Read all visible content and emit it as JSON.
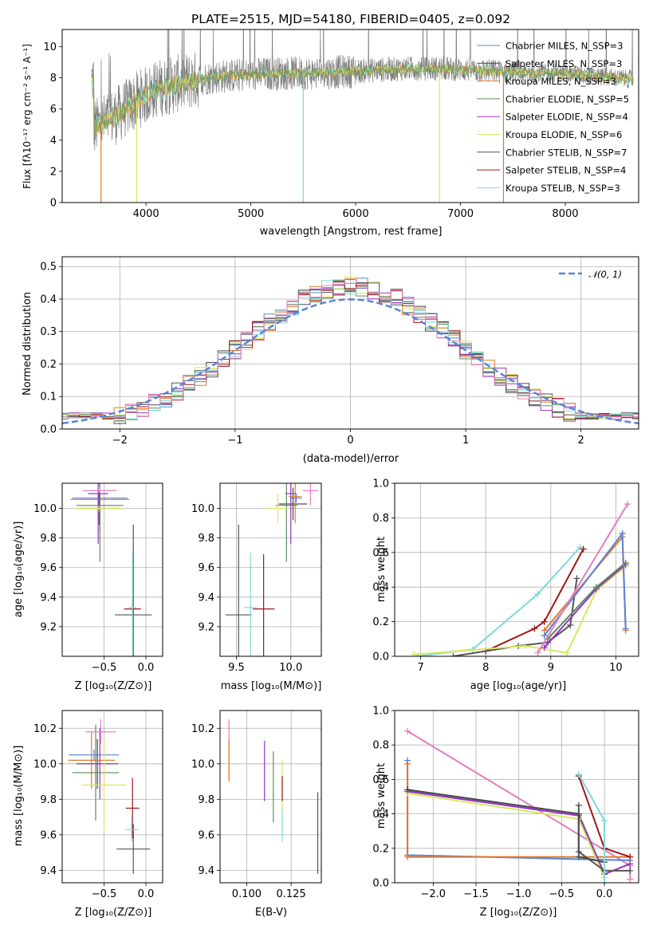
{
  "colors": {
    "chabrier_miles": "#5b84d6",
    "salpeter_miles": "#4a4a4a",
    "kroupa_miles": "#e07a2e",
    "chabrier_elodie": "#5c8a5c",
    "salpeter_elodie": "#9932cc",
    "kroupa_elodie": "#d7e85e",
    "chabrier_stelib": "#555555",
    "salpeter_stelib": "#a01818",
    "kroupa_stelib": "#7fd8d8",
    "pink": "#e27fc0",
    "gauss": "#5b84d6",
    "spectrum": "#7f7f7f"
  },
  "chart_data": [
    {
      "id": "spectrum",
      "type": "line",
      "title": "PLATE=2515, MJD=54180, FIBERID=0405, z=0.092",
      "xlabel": "wavelength [Angstrom, rest frame]",
      "ylabel": "Flux [fλ10⁻¹⁷ erg cm⁻² s⁻¹ A⁻¹]",
      "xlim": [
        3200,
        8700
      ],
      "ylim": [
        0,
        11.1
      ],
      "xticks": [
        "4000",
        "5000",
        "6000",
        "7000",
        "8000"
      ],
      "yticks": [
        "0",
        "2",
        "4",
        "6",
        "8",
        "10"
      ],
      "grid": false,
      "legend_position": "top-right",
      "legend": [
        "Chabrier MILES, N_SSP=3",
        "Salpeter MILES, N_SSP=3",
        "Kroupa MILES, N_SSP=3",
        "Chabrier ELODIE, N_SSP=5",
        "Salpeter ELODIE, N_SSP=4",
        "Kroupa ELODIE, N_SSP=6",
        "Chabrier STELIB, N_SSP=7",
        "Salpeter STELIB, N_SSP=4",
        "Kroupa STELIB, N_SSP=3"
      ],
      "continuum": [
        [
          3500,
          4.8
        ],
        [
          3700,
          5.5
        ],
        [
          3900,
          6.5
        ],
        [
          4100,
          7.3
        ],
        [
          4300,
          7.6
        ],
        [
          4500,
          7.9
        ],
        [
          4700,
          8.1
        ],
        [
          5000,
          8.2
        ],
        [
          5300,
          8.3
        ],
        [
          5600,
          8.3
        ],
        [
          5900,
          8.4
        ],
        [
          6200,
          8.5
        ],
        [
          6500,
          8.6
        ],
        [
          6800,
          8.6
        ],
        [
          7100,
          8.5
        ],
        [
          7400,
          8.4
        ],
        [
          7700,
          8.3
        ],
        [
          8000,
          8.3
        ],
        [
          8300,
          8.1
        ],
        [
          8650,
          7.9
        ]
      ]
    },
    {
      "id": "residuals",
      "type": "histogram",
      "xlabel": "(data-model)/error",
      "ylabel": "Normed distribution",
      "xlim": [
        -2.5,
        2.5
      ],
      "ylim": [
        0,
        0.53
      ],
      "xticks": [
        "−2",
        "−1",
        "0",
        "1",
        "2"
      ],
      "yticks": [
        "0.0",
        "0.1",
        "0.2",
        "0.3",
        "0.4",
        "0.5"
      ],
      "grid": true,
      "legend_position": "top-right",
      "legend": [
        "𝒩(0, 1)"
      ]
    },
    {
      "id": "age_vs_z",
      "type": "errorbar",
      "xlabel": "Z [log₁₀(Z/Z⊙)]",
      "ylabel": "age  [log₁₀(age/yr)]",
      "xlim": [
        -1.0,
        0.2
      ],
      "ylim": [
        9.0,
        10.17
      ],
      "xticks": [
        "−0.5",
        "0.0"
      ],
      "yticks": [
        "9.2",
        "9.4",
        "9.6",
        "9.8",
        "10.0"
      ],
      "grid": true,
      "points": [
        {
          "x": -0.55,
          "xe": 0.33,
          "y": 10.07,
          "ye": 0.03,
          "c": "chabrier_miles"
        },
        {
          "x": -0.56,
          "xe": 0.25,
          "y": 10.0,
          "ye": 0.11,
          "c": "salpeter_miles"
        },
        {
          "x": -0.55,
          "xe": 0.35,
          "y": 10.06,
          "ye": 0.22,
          "c": "kroupa_miles"
        },
        {
          "x": -0.55,
          "xe": 0.28,
          "y": 10.02,
          "ye": 0.38,
          "c": "chabrier_elodie"
        },
        {
          "x": -0.57,
          "xe": 0.12,
          "y": 10.1,
          "ye": 0.34,
          "c": "salpeter_elodie"
        },
        {
          "x": -0.56,
          "xe": 0.28,
          "y": 10.0,
          "ye": 0.02,
          "c": "kroupa_elodie"
        },
        {
          "x": -0.15,
          "xe": 0.22,
          "y": 9.28,
          "ye": 0.61,
          "c": "chabrier_stelib"
        },
        {
          "x": -0.16,
          "xe": 0.1,
          "y": 9.32,
          "ye": 0.06,
          "c": "salpeter_stelib"
        },
        {
          "x": -0.16,
          "xe": 0.05,
          "y": 9.33,
          "ye": 0.37,
          "c": "kroupa_stelib"
        },
        {
          "x": -0.55,
          "xe": 0.2,
          "y": 10.12,
          "ye": 0.02,
          "c": "pink"
        }
      ]
    },
    {
      "id": "age_vs_mass",
      "type": "errorbar",
      "xlabel": "mass [log₁₀(M/M⊙)]",
      "ylabel": "",
      "xlim": [
        9.35,
        10.28
      ],
      "ylim": [
        9.0,
        10.17
      ],
      "xticks": [
        "9.5",
        "10.0"
      ],
      "yticks": [
        "9.2",
        "9.4",
        "9.6",
        "9.8",
        "10.0"
      ],
      "grid": true,
      "points": [
        {
          "x": 10.05,
          "xe": 0.05,
          "y": 10.07,
          "ye": 0.03,
          "c": "chabrier_miles"
        },
        {
          "x": 10.02,
          "xe": 0.13,
          "y": 10.03,
          "ye": 0.11,
          "c": "salpeter_miles"
        },
        {
          "x": 10.04,
          "xe": 0.06,
          "y": 10.08,
          "ye": 0.18,
          "c": "kroupa_miles"
        },
        {
          "x": 9.96,
          "xe": 0.1,
          "y": 10.02,
          "ye": 0.38,
          "c": "chabrier_elodie"
        },
        {
          "x": 10.0,
          "xe": 0.05,
          "y": 10.1,
          "ye": 0.34,
          "c": "salpeter_elodie"
        },
        {
          "x": 9.88,
          "xe": 0.1,
          "y": 10.0,
          "ye": 0.1,
          "c": "kroupa_elodie"
        },
        {
          "x": 9.52,
          "xe": 0.12,
          "y": 9.28,
          "ye": 0.61,
          "c": "chabrier_stelib"
        },
        {
          "x": 9.75,
          "xe": 0.1,
          "y": 9.32,
          "ye": 0.37,
          "c": "salpeter_stelib"
        },
        {
          "x": 9.63,
          "xe": 0.06,
          "y": 9.33,
          "ye": 0.37,
          "c": "kroupa_stelib"
        },
        {
          "x": 10.18,
          "xe": 0.07,
          "y": 10.12,
          "ye": 0.1,
          "c": "pink"
        }
      ]
    },
    {
      "id": "weight_vs_age",
      "type": "line",
      "xlabel": "age  [log₁₀(age/yr)]",
      "ylabel": "mass weight",
      "xlim": [
        6.6,
        10.35
      ],
      "ylim": [
        0,
        1.0
      ],
      "xticks": [
        "7",
        "8",
        "9",
        "10"
      ],
      "yticks": [
        "0.0",
        "0.2",
        "0.4",
        "0.6",
        "0.8",
        "1.0"
      ],
      "grid": true,
      "series": [
        {
          "c": "kroupa_stelib",
          "points": [
            [
              6.95,
              0.0
            ],
            [
              7.8,
              0.04
            ],
            [
              8.8,
              0.36
            ],
            [
              9.45,
              0.63
            ]
          ]
        },
        {
          "c": "salpeter_stelib",
          "points": [
            [
              8.0,
              0.03
            ],
            [
              8.75,
              0.16
            ],
            [
              8.9,
              0.2
            ],
            [
              9.5,
              0.62
            ]
          ]
        },
        {
          "c": "chabrier_stelib",
          "points": [
            [
              7.5,
              0.0
            ],
            [
              8.5,
              0.06
            ],
            [
              8.95,
              0.08
            ],
            [
              9.3,
              0.18
            ],
            [
              9.4,
              0.45
            ]
          ]
        },
        {
          "c": "kroupa_elodie",
          "points": [
            [
              6.9,
              0.01
            ],
            [
              8.6,
              0.06
            ],
            [
              9.25,
              0.02
            ],
            [
              9.7,
              0.38
            ],
            [
              10.15,
              0.52
            ]
          ]
        },
        {
          "c": "salpeter_elodie",
          "points": [
            [
              8.9,
              0.05
            ],
            [
              9.7,
              0.39
            ],
            [
              10.15,
              0.53
            ]
          ]
        },
        {
          "c": "chabrier_elodie",
          "points": [
            [
              8.95,
              0.1
            ],
            [
              9.7,
              0.4
            ],
            [
              10.15,
              0.54
            ]
          ]
        },
        {
          "c": "kroupa_miles",
          "points": [
            [
              8.9,
              0.15
            ],
            [
              10.1,
              0.69
            ],
            [
              10.15,
              0.15
            ]
          ]
        },
        {
          "c": "chabrier_miles",
          "points": [
            [
              8.9,
              0.12
            ],
            [
              10.1,
              0.71
            ],
            [
              10.15,
              0.16
            ]
          ]
        },
        {
          "c": "pink",
          "points": [
            [
              8.8,
              0.02
            ],
            [
              10.18,
              0.88
            ]
          ]
        }
      ]
    },
    {
      "id": "mass_vs_z",
      "type": "errorbar",
      "xlabel": "Z [log₁₀(Z/Z⊙)]",
      "ylabel": "mass [log₁₀(M/M⊙)]",
      "xlim": [
        -1.0,
        0.2
      ],
      "ylim": [
        9.33,
        10.3
      ],
      "xticks": [
        "−0.5",
        "0.0"
      ],
      "yticks": [
        "9.4",
        "9.6",
        "9.8",
        "10.0",
        "10.2"
      ],
      "grid": true,
      "points": [
        {
          "x": -0.62,
          "xe": 0.3,
          "y": 10.05,
          "ye": 0.03,
          "c": "chabrier_miles"
        },
        {
          "x": -0.58,
          "xe": 0.25,
          "y": 10.0,
          "ye": 0.14,
          "c": "salpeter_miles"
        },
        {
          "x": -0.65,
          "xe": 0.28,
          "y": 10.02,
          "ye": 0.16,
          "c": "kroupa_miles"
        },
        {
          "x": -0.6,
          "xe": 0.28,
          "y": 9.95,
          "ye": 0.27,
          "c": "chabrier_elodie"
        },
        {
          "x": -0.55,
          "xe": 0.16,
          "y": 10.0,
          "ye": 0.2,
          "c": "salpeter_elodie"
        },
        {
          "x": -0.5,
          "xe": 0.26,
          "y": 9.88,
          "ye": 0.26,
          "c": "kroupa_elodie"
        },
        {
          "x": -0.15,
          "xe": 0.2,
          "y": 9.52,
          "ye": 0.14,
          "c": "chabrier_stelib"
        },
        {
          "x": -0.16,
          "xe": 0.08,
          "y": 9.75,
          "ye": 0.17,
          "c": "salpeter_stelib"
        },
        {
          "x": -0.17,
          "xe": 0.08,
          "y": 9.63,
          "ye": 0.07,
          "c": "kroupa_stelib"
        },
        {
          "x": -0.54,
          "xe": 0.18,
          "y": 10.18,
          "ye": 0.07,
          "c": "pink"
        }
      ]
    },
    {
      "id": "mass_vs_ebv",
      "type": "errorbar",
      "xlabel": "E(B-V)",
      "ylabel": "",
      "xlim": [
        0.085,
        0.142
      ],
      "ylim": [
        9.33,
        10.3
      ],
      "xticks": [
        "0.100",
        "0.125"
      ],
      "yticks": [
        "9.4",
        "9.6",
        "9.8",
        "10.0",
        "10.2"
      ],
      "grid": true,
      "points": [
        {
          "x": 0.09,
          "xe": 0,
          "y": 10.08,
          "ye": 0.17,
          "c": "pink"
        },
        {
          "x": 0.09,
          "xe": 0,
          "y": 10.02,
          "ye": 0.12,
          "c": "kroupa_miles"
        },
        {
          "x": 0.11,
          "xe": 0,
          "y": 9.96,
          "ye": 0.17,
          "c": "salpeter_elodie"
        },
        {
          "x": 0.115,
          "xe": 0,
          "y": 9.87,
          "ye": 0.2,
          "c": "chabrier_elodie"
        },
        {
          "x": 0.12,
          "xe": 0,
          "y": 9.75,
          "ye": 0.19,
          "c": "kroupa_stelib"
        },
        {
          "x": 0.12,
          "xe": 0,
          "y": 9.88,
          "ye": 0.14,
          "c": "kroupa_elodie"
        },
        {
          "x": 0.12,
          "xe": 0,
          "y": 9.86,
          "ye": 0.07,
          "c": "salpeter_stelib"
        },
        {
          "x": 0.14,
          "xe": 0,
          "y": 9.61,
          "ye": 0.23,
          "c": "chabrier_stelib"
        }
      ]
    },
    {
      "id": "weight_vs_z",
      "type": "line",
      "xlabel": "Z [log₁₀(Z/Z⊙)]",
      "ylabel": "mass weight",
      "xlim": [
        -2.45,
        0.4
      ],
      "ylim": [
        0,
        1.0
      ],
      "xticks": [
        "−2.0",
        "−1.5",
        "−1.0",
        "−0.5",
        "0.0"
      ],
      "yticks": [
        "0.0",
        "0.2",
        "0.4",
        "0.6",
        "0.8",
        "1.0"
      ],
      "grid": true,
      "series": [
        {
          "c": "pink",
          "points": [
            [
              -2.3,
              0.88
            ],
            [
              0.3,
              0.1
            ],
            [
              0.3,
              0.02
            ]
          ]
        },
        {
          "c": "chabrier_miles",
          "points": [
            [
              -2.3,
              0.71
            ],
            [
              -2.3,
              0.16
            ],
            [
              0.3,
              0.13
            ]
          ]
        },
        {
          "c": "kroupa_miles",
          "points": [
            [
              -2.3,
              0.69
            ],
            [
              -2.3,
              0.15
            ],
            [
              0.3,
              0.15
            ]
          ]
        },
        {
          "c": "chabrier_elodie",
          "points": [
            [
              -2.3,
              0.54
            ],
            [
              -0.3,
              0.4
            ],
            [
              0.0,
              0.05
            ]
          ]
        },
        {
          "c": "salpeter_elodie",
          "points": [
            [
              -2.3,
              0.53
            ],
            [
              -0.3,
              0.39
            ],
            [
              0.0,
              0.05
            ],
            [
              0.3,
              0.11
            ]
          ]
        },
        {
          "c": "kroupa_elodie",
          "points": [
            [
              -2.3,
              0.52
            ],
            [
              -0.3,
              0.37
            ],
            [
              0.0,
              0.03
            ]
          ]
        },
        {
          "c": "chabrier_stelib",
          "points": [
            [
              -0.3,
              0.45
            ],
            [
              -0.3,
              0.18
            ],
            [
              0.0,
              0.07
            ],
            [
              0.3,
              0.07
            ]
          ]
        },
        {
          "c": "salpeter_miles",
          "points": [
            [
              -2.3,
              0.54
            ],
            [
              -0.3,
              0.4
            ],
            [
              -0.3,
              0.15
            ],
            [
              0.0,
              0.12
            ]
          ]
        },
        {
          "c": "salpeter_stelib",
          "points": [
            [
              -0.3,
              0.62
            ],
            [
              0.0,
              0.2
            ],
            [
              0.3,
              0.15
            ]
          ]
        },
        {
          "c": "kroupa_stelib",
          "points": [
            [
              -0.3,
              0.63
            ],
            [
              0.0,
              0.36
            ],
            [
              0.0,
              0.0
            ]
          ]
        }
      ]
    }
  ]
}
